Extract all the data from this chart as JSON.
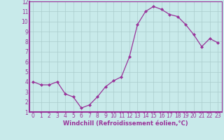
{
  "hours": [
    0,
    1,
    2,
    3,
    4,
    5,
    6,
    7,
    8,
    9,
    10,
    11,
    12,
    13,
    14,
    15,
    16,
    17,
    18,
    19,
    20,
    21,
    22,
    23
  ],
  "y_values": [
    4.0,
    3.7,
    3.7,
    4.0,
    2.8,
    2.5,
    1.4,
    1.7,
    2.5,
    3.5,
    4.1,
    4.5,
    6.5,
    9.7,
    11.0,
    11.5,
    11.2,
    10.7,
    10.5,
    9.7,
    8.7,
    7.5,
    8.3,
    7.9
  ],
  "line_color": "#993399",
  "marker_color": "#993399",
  "bg_color": "#c8eaea",
  "grid_color": "#aacccc",
  "ylim": [
    1,
    12
  ],
  "xlim": [
    -0.5,
    23.5
  ],
  "yticks": [
    1,
    2,
    3,
    4,
    5,
    6,
    7,
    8,
    9,
    10,
    11,
    12
  ],
  "xticks": [
    0,
    1,
    2,
    3,
    4,
    5,
    6,
    7,
    8,
    9,
    10,
    11,
    12,
    13,
    14,
    15,
    16,
    17,
    18,
    19,
    20,
    21,
    22,
    23
  ],
  "xlabel": "Windchill (Refroidissement éolien,°C)",
  "xlabel_color": "#993399",
  "tick_color": "#993399",
  "axis_color": "#993399",
  "tick_fontsize": 5.5,
  "xlabel_fontsize": 6.0
}
